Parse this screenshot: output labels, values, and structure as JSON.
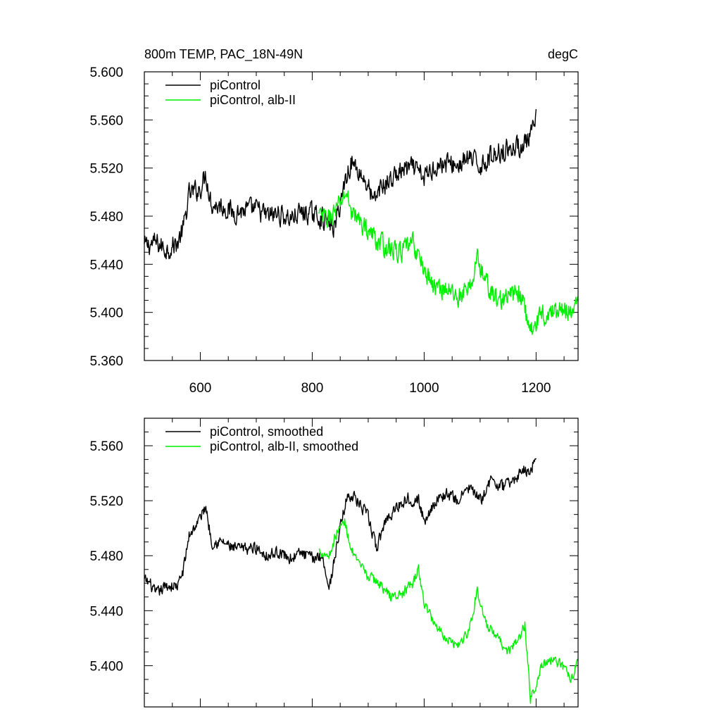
{
  "chart_data": [
    {
      "type": "line",
      "title_left": "800m TEMP, PAC_18N-49N",
      "title_right": "degC",
      "xlim": [
        500,
        1275
      ],
      "ylim": [
        5.36,
        5.6
      ],
      "x_ticks": [
        600,
        800,
        1000,
        1200
      ],
      "x_tick_labels": [
        "600",
        "800",
        "1000",
        "1200"
      ],
      "y_ticks": [
        5.36,
        5.4,
        5.44,
        5.48,
        5.52,
        5.56,
        5.6
      ],
      "y_tick_labels": [
        "5.360",
        "5.400",
        "5.440",
        "5.480",
        "5.520",
        "5.560",
        "5.600"
      ],
      "legend_position": "top-left",
      "series": [
        {
          "name": "piControl",
          "color": "#000000",
          "x_range": [
            500,
            1200
          ],
          "anchors": [
            [
              500,
              5.455
            ],
            [
              520,
              5.458
            ],
            [
              540,
              5.452
            ],
            [
              560,
              5.458
            ],
            [
              570,
              5.47
            ],
            [
              580,
              5.498
            ],
            [
              600,
              5.503
            ],
            [
              610,
              5.515
            ],
            [
              620,
              5.49
            ],
            [
              640,
              5.488
            ],
            [
              660,
              5.483
            ],
            [
              680,
              5.485
            ],
            [
              700,
              5.486
            ],
            [
              720,
              5.48
            ],
            [
              740,
              5.482
            ],
            [
              760,
              5.478
            ],
            [
              780,
              5.483
            ],
            [
              800,
              5.482
            ],
            [
              820,
              5.478
            ],
            [
              840,
              5.47
            ],
            [
              860,
              5.512
            ],
            [
              870,
              5.525
            ],
            [
              880,
              5.52
            ],
            [
              900,
              5.505
            ],
            [
              910,
              5.49
            ],
            [
              920,
              5.503
            ],
            [
              940,
              5.51
            ],
            [
              960,
              5.518
            ],
            [
              980,
              5.52
            ],
            [
              1000,
              5.512
            ],
            [
              1020,
              5.522
            ],
            [
              1040,
              5.524
            ],
            [
              1060,
              5.522
            ],
            [
              1080,
              5.528
            ],
            [
              1100,
              5.522
            ],
            [
              1120,
              5.53
            ],
            [
              1140,
              5.535
            ],
            [
              1160,
              5.537
            ],
            [
              1180,
              5.54
            ],
            [
              1190,
              5.545
            ],
            [
              1200,
              5.56
            ]
          ],
          "noise": 0.012
        },
        {
          "name": "piControl, alb-II",
          "color": "#00ee00",
          "x_range": [
            812,
            1275
          ],
          "anchors": [
            [
              812,
              5.48
            ],
            [
              830,
              5.478
            ],
            [
              850,
              5.49
            ],
            [
              860,
              5.5
            ],
            [
              870,
              5.485
            ],
            [
              880,
              5.478
            ],
            [
              900,
              5.468
            ],
            [
              920,
              5.458
            ],
            [
              940,
              5.452
            ],
            [
              960,
              5.45
            ],
            [
              980,
              5.458
            ],
            [
              1000,
              5.435
            ],
            [
              1020,
              5.42
            ],
            [
              1040,
              5.42
            ],
            [
              1060,
              5.413
            ],
            [
              1080,
              5.418
            ],
            [
              1095,
              5.445
            ],
            [
              1110,
              5.425
            ],
            [
              1130,
              5.41
            ],
            [
              1150,
              5.412
            ],
            [
              1170,
              5.418
            ],
            [
              1190,
              5.385
            ],
            [
              1210,
              5.398
            ],
            [
              1230,
              5.4
            ],
            [
              1250,
              5.402
            ],
            [
              1275,
              5.405
            ]
          ],
          "noise": 0.012
        }
      ]
    },
    {
      "type": "line",
      "xlim": [
        500,
        1275
      ],
      "ylim": [
        5.37,
        5.58
      ],
      "x_ticks": [
        600,
        800,
        1000,
        1200
      ],
      "y_ticks": [
        5.4,
        5.44,
        5.48,
        5.52,
        5.56
      ],
      "y_tick_labels": [
        "5.400",
        "5.440",
        "5.480",
        "5.520",
        "5.560"
      ],
      "legend_position": "top-left",
      "series": [
        {
          "name": "piControl, smoothed",
          "color": "#000000",
          "x_range": [
            500,
            1200
          ],
          "anchors": [
            [
              500,
              5.462
            ],
            [
              510,
              5.46
            ],
            [
              520,
              5.452
            ],
            [
              540,
              5.458
            ],
            [
              560,
              5.458
            ],
            [
              570,
              5.47
            ],
            [
              580,
              5.495
            ],
            [
              595,
              5.504
            ],
            [
              610,
              5.516
            ],
            [
              620,
              5.49
            ],
            [
              640,
              5.49
            ],
            [
              660,
              5.485
            ],
            [
              680,
              5.485
            ],
            [
              700,
              5.486
            ],
            [
              720,
              5.48
            ],
            [
              740,
              5.483
            ],
            [
              760,
              5.478
            ],
            [
              780,
              5.482
            ],
            [
              800,
              5.478
            ],
            [
              810,
              5.48
            ],
            [
              820,
              5.478
            ],
            [
              830,
              5.455
            ],
            [
              845,
              5.49
            ],
            [
              860,
              5.52
            ],
            [
              870,
              5.525
            ],
            [
              880,
              5.52
            ],
            [
              900,
              5.508
            ],
            [
              915,
              5.485
            ],
            [
              930,
              5.505
            ],
            [
              950,
              5.515
            ],
            [
              970,
              5.522
            ],
            [
              990,
              5.52
            ],
            [
              1000,
              5.505
            ],
            [
              1020,
              5.52
            ],
            [
              1040,
              5.525
            ],
            [
              1060,
              5.52
            ],
            [
              1080,
              5.53
            ],
            [
              1100,
              5.52
            ],
            [
              1120,
              5.535
            ],
            [
              1140,
              5.53
            ],
            [
              1160,
              5.535
            ],
            [
              1180,
              5.543
            ],
            [
              1190,
              5.54
            ],
            [
              1200,
              5.555
            ]
          ],
          "noise": 0.006
        },
        {
          "name": "piControl, alb-II, smoothed",
          "color": "#00ee00",
          "x_range": [
            812,
            1275
          ],
          "anchors": [
            [
              812,
              5.484
            ],
            [
              830,
              5.48
            ],
            [
              845,
              5.498
            ],
            [
              858,
              5.505
            ],
            [
              870,
              5.485
            ],
            [
              880,
              5.475
            ],
            [
              900,
              5.465
            ],
            [
              920,
              5.46
            ],
            [
              940,
              5.45
            ],
            [
              960,
              5.452
            ],
            [
              980,
              5.46
            ],
            [
              990,
              5.47
            ],
            [
              1000,
              5.445
            ],
            [
              1020,
              5.43
            ],
            [
              1040,
              5.42
            ],
            [
              1060,
              5.415
            ],
            [
              1080,
              5.425
            ],
            [
              1095,
              5.455
            ],
            [
              1110,
              5.43
            ],
            [
              1130,
              5.42
            ],
            [
              1150,
              5.41
            ],
            [
              1170,
              5.42
            ],
            [
              1180,
              5.43
            ],
            [
              1190,
              5.375
            ],
            [
              1210,
              5.4
            ],
            [
              1230,
              5.405
            ],
            [
              1250,
              5.398
            ],
            [
              1265,
              5.39
            ],
            [
              1275,
              5.405
            ]
          ],
          "noise": 0.005
        }
      ]
    }
  ]
}
